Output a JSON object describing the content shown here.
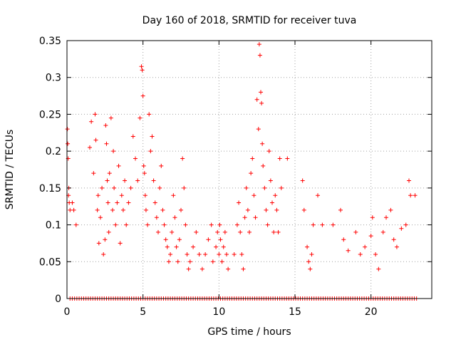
{
  "chart_data": {
    "type": "scatter",
    "title": "Day 160 of 2018, SRMTID for receiver tuva",
    "xlabel": "GPS time / hours",
    "ylabel": "SRMTID / TECUs",
    "xlim": [
      0,
      24
    ],
    "ylim": [
      0,
      0.35
    ],
    "xticks": [
      0,
      5,
      10,
      15,
      20
    ],
    "xtick_labels": [
      "0",
      "5",
      "10",
      "15",
      "20"
    ],
    "yticks": [
      0,
      0.05,
      0.1,
      0.15,
      0.2,
      0.25,
      0.3,
      0.35
    ],
    "ytick_labels": [
      "0",
      "0.05",
      "0.1",
      "0.15",
      "0.2",
      "0.25",
      "0.3",
      "0.35"
    ],
    "grid": true,
    "marker": "plus",
    "color": "#ff0000",
    "series": [
      {
        "points": [
          [
            0.03,
            0.23
          ],
          [
            0.05,
            0.21
          ],
          [
            0.08,
            0.19
          ],
          [
            0.1,
            0.14
          ],
          [
            0.12,
            0.15
          ],
          [
            0.15,
            0.13
          ],
          [
            0.2,
            0.12
          ],
          [
            0.35,
            0.13
          ],
          [
            0.45,
            0.12
          ],
          [
            0.6,
            0.1
          ],
          [
            1.5,
            0.205
          ],
          [
            1.6,
            0.24
          ],
          [
            1.75,
            0.17
          ],
          [
            1.85,
            0.25
          ],
          [
            1.9,
            0.215
          ],
          [
            2.0,
            0.12
          ],
          [
            2.05,
            0.14
          ],
          [
            2.1,
            0.075
          ],
          [
            2.2,
            0.11
          ],
          [
            2.3,
            0.15
          ],
          [
            2.4,
            0.06
          ],
          [
            2.5,
            0.08
          ],
          [
            2.55,
            0.235
          ],
          [
            2.6,
            0.21
          ],
          [
            2.65,
            0.16
          ],
          [
            2.7,
            0.13
          ],
          [
            2.75,
            0.09
          ],
          [
            2.8,
            0.17
          ],
          [
            2.9,
            0.245
          ],
          [
            3.0,
            0.12
          ],
          [
            3.05,
            0.2
          ],
          [
            3.1,
            0.15
          ],
          [
            3.2,
            0.1
          ],
          [
            3.3,
            0.13
          ],
          [
            3.4,
            0.18
          ],
          [
            3.5,
            0.075
          ],
          [
            3.6,
            0.14
          ],
          [
            3.7,
            0.12
          ],
          [
            3.8,
            0.16
          ],
          [
            3.9,
            0.1
          ],
          [
            4.05,
            0.13
          ],
          [
            4.2,
            0.15
          ],
          [
            4.35,
            0.22
          ],
          [
            4.5,
            0.19
          ],
          [
            4.65,
            0.16
          ],
          [
            4.8,
            0.245
          ],
          [
            4.9,
            0.315
          ],
          [
            4.95,
            0.31
          ],
          [
            5.0,
            0.275
          ],
          [
            5.05,
            0.18
          ],
          [
            5.1,
            0.17
          ],
          [
            5.15,
            0.14
          ],
          [
            5.2,
            0.12
          ],
          [
            5.3,
            0.1
          ],
          [
            5.4,
            0.25
          ],
          [
            5.5,
            0.2
          ],
          [
            5.6,
            0.22
          ],
          [
            5.7,
            0.16
          ],
          [
            5.8,
            0.13
          ],
          [
            5.9,
            0.11
          ],
          [
            6.0,
            0.09
          ],
          [
            6.1,
            0.15
          ],
          [
            6.2,
            0.18
          ],
          [
            6.3,
            0.12
          ],
          [
            6.4,
            0.1
          ],
          [
            6.5,
            0.08
          ],
          [
            6.6,
            0.07
          ],
          [
            6.7,
            0.05
          ],
          [
            6.8,
            0.06
          ],
          [
            6.9,
            0.09
          ],
          [
            7.0,
            0.14
          ],
          [
            7.1,
            0.11
          ],
          [
            7.2,
            0.07
          ],
          [
            7.3,
            0.05
          ],
          [
            7.4,
            0.08
          ],
          [
            7.5,
            0.12
          ],
          [
            7.6,
            0.19
          ],
          [
            7.7,
            0.15
          ],
          [
            7.8,
            0.1
          ],
          [
            7.9,
            0.06
          ],
          [
            8.0,
            0.04
          ],
          [
            8.1,
            0.05
          ],
          [
            8.3,
            0.07
          ],
          [
            8.5,
            0.09
          ],
          [
            8.7,
            0.06
          ],
          [
            8.9,
            0.04
          ],
          [
            9.1,
            0.06
          ],
          [
            9.3,
            0.08
          ],
          [
            9.5,
            0.1
          ],
          [
            9.6,
            0.05
          ],
          [
            9.8,
            0.07
          ],
          [
            9.9,
            0.09
          ],
          [
            10.0,
            0.06
          ],
          [
            10.05,
            0.1
          ],
          [
            10.1,
            0.08
          ],
          [
            10.2,
            0.05
          ],
          [
            10.3,
            0.07
          ],
          [
            10.4,
            0.09
          ],
          [
            10.5,
            0.06
          ],
          [
            10.6,
            0.04
          ],
          [
            11.0,
            0.06
          ],
          [
            11.2,
            0.1
          ],
          [
            11.3,
            0.13
          ],
          [
            11.4,
            0.09
          ],
          [
            11.5,
            0.06
          ],
          [
            11.6,
            0.04
          ],
          [
            11.7,
            0.11
          ],
          [
            11.8,
            0.15
          ],
          [
            11.9,
            0.12
          ],
          [
            12.0,
            0.09
          ],
          [
            12.1,
            0.17
          ],
          [
            12.2,
            0.19
          ],
          [
            12.3,
            0.14
          ],
          [
            12.4,
            0.11
          ],
          [
            12.5,
            0.27
          ],
          [
            12.6,
            0.23
          ],
          [
            12.65,
            0.345
          ],
          [
            12.7,
            0.33
          ],
          [
            12.75,
            0.28
          ],
          [
            12.8,
            0.265
          ],
          [
            12.85,
            0.21
          ],
          [
            12.9,
            0.18
          ],
          [
            13.0,
            0.15
          ],
          [
            13.1,
            0.12
          ],
          [
            13.2,
            0.1
          ],
          [
            13.3,
            0.2
          ],
          [
            13.4,
            0.16
          ],
          [
            13.5,
            0.13
          ],
          [
            13.6,
            0.09
          ],
          [
            13.7,
            0.14
          ],
          [
            13.8,
            0.12
          ],
          [
            13.9,
            0.09
          ],
          [
            14.0,
            0.19
          ],
          [
            14.1,
            0.15
          ],
          [
            14.5,
            0.19
          ],
          [
            15.5,
            0.16
          ],
          [
            15.6,
            0.12
          ],
          [
            15.8,
            0.07
          ],
          [
            15.9,
            0.05
          ],
          [
            16.0,
            0.04
          ],
          [
            16.1,
            0.06
          ],
          [
            16.2,
            0.1
          ],
          [
            16.5,
            0.14
          ],
          [
            16.8,
            0.1
          ],
          [
            17.5,
            0.1
          ],
          [
            18.0,
            0.12
          ],
          [
            18.2,
            0.08
          ],
          [
            18.5,
            0.065
          ],
          [
            19.0,
            0.09
          ],
          [
            19.3,
            0.06
          ],
          [
            19.6,
            0.07
          ],
          [
            20.0,
            0.085
          ],
          [
            20.1,
            0.11
          ],
          [
            20.3,
            0.06
          ],
          [
            20.5,
            0.04
          ],
          [
            20.8,
            0.09
          ],
          [
            21.0,
            0.11
          ],
          [
            21.3,
            0.12
          ],
          [
            21.5,
            0.08
          ],
          [
            21.7,
            0.07
          ],
          [
            22.0,
            0.095
          ],
          [
            22.3,
            0.1
          ],
          [
            22.5,
            0.16
          ],
          [
            22.6,
            0.14
          ],
          [
            22.9,
            0.14
          ]
        ]
      }
    ],
    "zero_band_x": [
      0.2,
      23.0
    ]
  }
}
